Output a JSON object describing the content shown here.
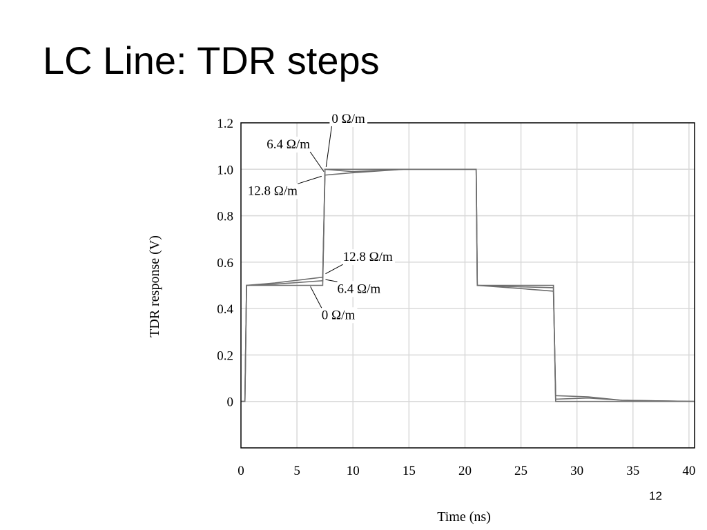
{
  "slide": {
    "title": "LC Line: TDR steps",
    "page_number": "12"
  },
  "colors": {
    "grid": "#d9d9d9",
    "frame": "#000000",
    "trace": "#6e6e6e",
    "annotation_leader": "#000000"
  },
  "chart_data": {
    "type": "line",
    "title": "",
    "xlabel": "Time (ns)",
    "ylabel": "TDR response (V)",
    "xlim": [
      0,
      40.5
    ],
    "ylim": [
      -0.2,
      1.2
    ],
    "xticks": [
      0,
      5,
      10,
      15,
      20,
      25,
      30,
      35,
      40
    ],
    "xtick_labels": [
      "0",
      "5",
      "10",
      "15",
      "20",
      "25",
      "30",
      "35",
      "40"
    ],
    "yticks": [
      1.2,
      1.0,
      0.8,
      0.6,
      0.4,
      0.2,
      0
    ],
    "ytick_labels": [
      "1.2",
      "1.0",
      "0.8",
      "0.6",
      "0.4",
      "0.2",
      "0"
    ],
    "grid": true,
    "series": [
      {
        "name": "0 Ω/m",
        "x": [
          0,
          0.35,
          0.5,
          7.3,
          7.5,
          21.0,
          21.1,
          27.9,
          28.1,
          40.5
        ],
        "y": [
          0,
          0,
          0.5,
          0.5,
          1.0,
          1.0,
          0.5,
          0.5,
          0,
          0
        ]
      },
      {
        "name": "6.4 Ω/m",
        "x": [
          0,
          0.35,
          0.5,
          3.0,
          7.3,
          7.5,
          10.0,
          14.5,
          21.0,
          21.1,
          24.0,
          27.9,
          28.1,
          31.0,
          34.0,
          40.5
        ],
        "y": [
          0,
          0,
          0.5,
          0.505,
          0.52,
          1.0,
          0.99,
          1.0,
          1.0,
          0.5,
          0.495,
          0.49,
          0.01,
          0.015,
          0.005,
          0
        ]
      },
      {
        "name": "12.8 Ω/m",
        "x": [
          0,
          0.35,
          0.5,
          3.0,
          7.3,
          7.5,
          10.0,
          14.5,
          21.0,
          21.1,
          24.0,
          27.9,
          28.1,
          31.0,
          34.0,
          40.5
        ],
        "y": [
          0,
          0,
          0.5,
          0.51,
          0.535,
          0.975,
          0.985,
          1.0,
          1.0,
          0.5,
          0.49,
          0.475,
          0.025,
          0.02,
          0.005,
          0
        ]
      }
    ],
    "annotations": [
      {
        "text": "0 Ω/m",
        "x": 8.1,
        "y": 1.2,
        "target": [
          7.6,
          1.01
        ]
      },
      {
        "text": "6.4 Ω/m",
        "x": 2.3,
        "y": 1.09,
        "target": [
          7.4,
          0.99
        ]
      },
      {
        "text": "12.8 Ω/m",
        "x": 0.6,
        "y": 0.89,
        "target": [
          7.2,
          0.97
        ]
      },
      {
        "text": "12.8 Ω/m",
        "x": 9.1,
        "y": 0.605,
        "target": [
          7.55,
          0.55
        ]
      },
      {
        "text": "6.4 Ω/m",
        "x": 8.6,
        "y": 0.468,
        "target": [
          7.55,
          0.525
        ]
      },
      {
        "text": "0 Ω/m",
        "x": 7.2,
        "y": 0.355,
        "target": [
          6.2,
          0.495
        ]
      }
    ]
  }
}
